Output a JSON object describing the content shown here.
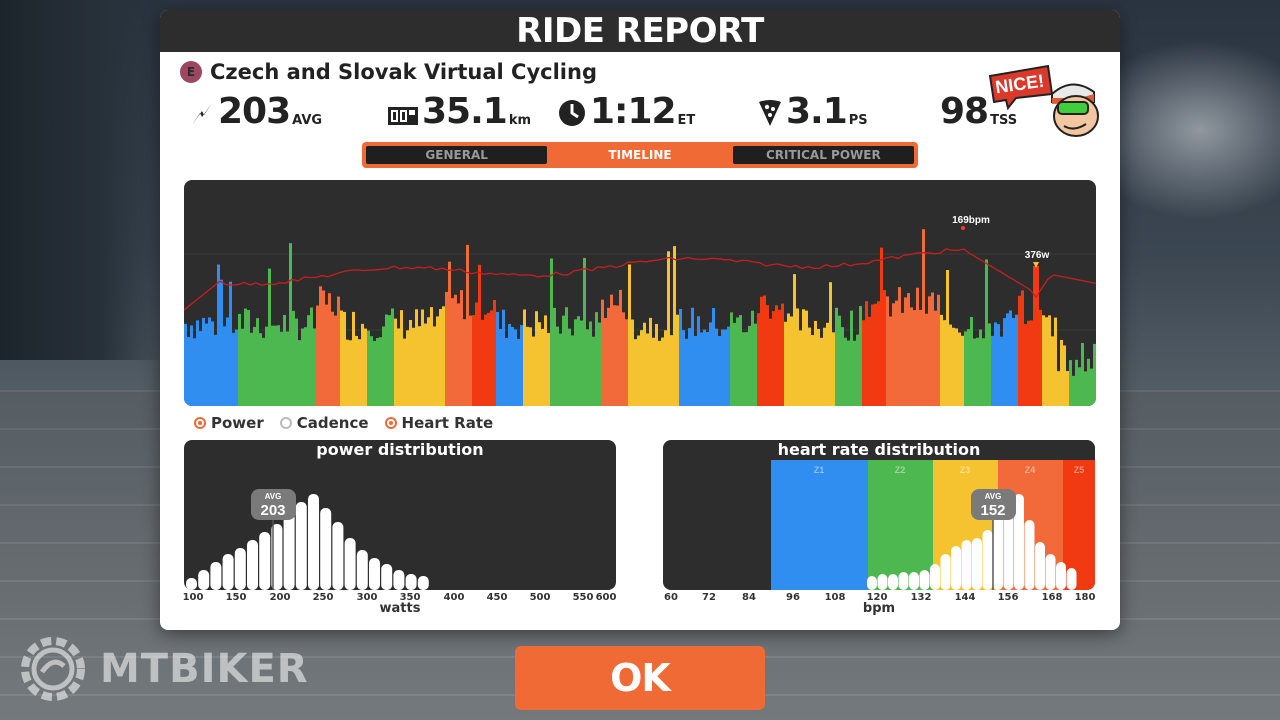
{
  "dialog": {
    "title": "RIDE REPORT"
  },
  "event": {
    "badge": "E",
    "name": "Czech and Slovak Virtual Cycling"
  },
  "stats": [
    {
      "icon": "power-bolt-icon",
      "value": "203",
      "unit": "AVG"
    },
    {
      "icon": "odometer-icon",
      "value": "35.1",
      "unit": "km"
    },
    {
      "icon": "clock-icon",
      "value": "1:12",
      "unit": "ET"
    },
    {
      "icon": "pizza-slice-icon",
      "value": "3.1",
      "unit": "PS"
    },
    {
      "icon": "",
      "value": "98",
      "unit": "TSS"
    }
  ],
  "mascot": {
    "bubble": "NICE!"
  },
  "tabs": [
    {
      "label": "GENERAL",
      "active": false
    },
    {
      "label": "TIMELINE",
      "active": true
    },
    {
      "label": "CRITICAL POWER",
      "active": false
    }
  ],
  "timeline": {
    "hr_peak_label": "169bpm",
    "power_peak_label": "376w"
  },
  "legend": [
    {
      "label": "Power",
      "on": true
    },
    {
      "label": "Cadence",
      "on": false
    },
    {
      "label": "Heart Rate",
      "on": true
    }
  ],
  "power_distribution": {
    "title": "power distribution",
    "avg_label": "AVG",
    "avg_value": "203",
    "axis_ticks": [
      "100",
      "150",
      "200",
      "250",
      "300",
      "350",
      "400",
      "450",
      "500",
      "550",
      "600"
    ],
    "xlabel": "watts"
  },
  "hr_distribution": {
    "title": "heart rate distribution",
    "avg_label": "AVG",
    "avg_value": "152",
    "zones": [
      "Z1",
      "Z2",
      "Z3",
      "Z4",
      "Z5"
    ],
    "zone_colors": [
      "#2f8ef0",
      "#4cb84f",
      "#f6c330",
      "#f26a3a",
      "#f23a12"
    ],
    "axis_ticks": [
      "60",
      "72",
      "84",
      "96",
      "108",
      "120",
      "132",
      "144",
      "156",
      "168",
      "180"
    ],
    "xlabel": "bpm"
  },
  "ok_button": {
    "label": "OK"
  },
  "watermark": {
    "text": "MTBIKER"
  },
  "colors": {
    "accent": "#f06a36",
    "panel_dark": "#2d2d2d"
  }
}
